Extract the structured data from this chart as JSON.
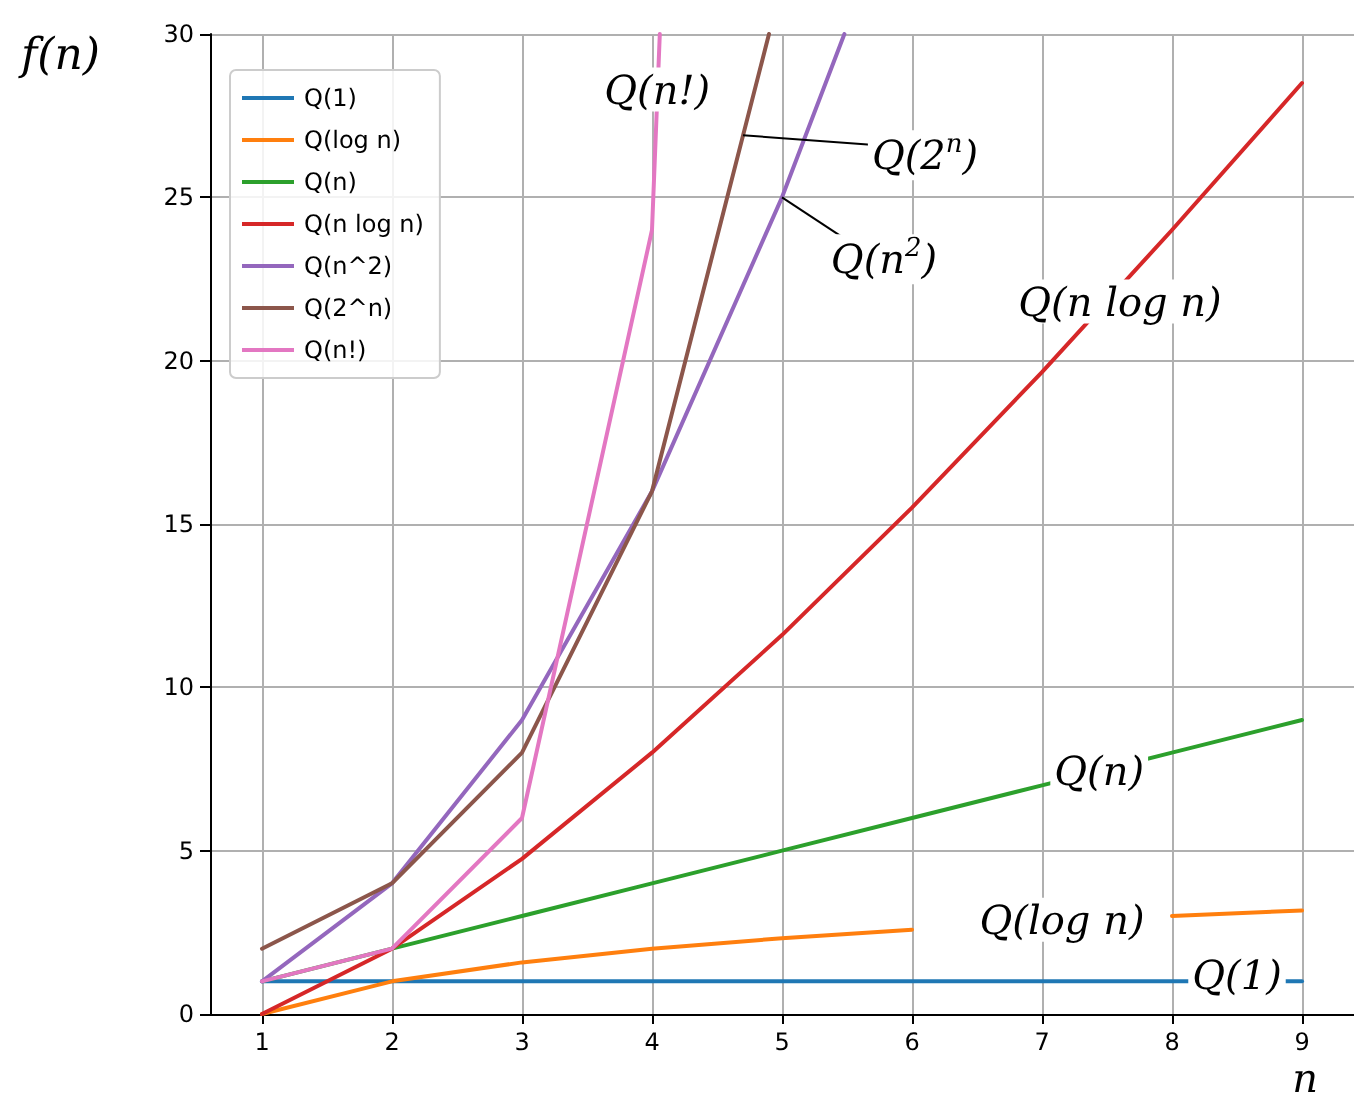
{
  "chart_data": {
    "type": "line",
    "xlabel": "n",
    "ylabel": "f(n)",
    "xlim": [
      0.6,
      9.4
    ],
    "xticks": [
      1,
      2,
      3,
      4,
      5,
      6,
      7,
      8,
      9
    ],
    "ylim": [
      0,
      30
    ],
    "yticks": [
      0,
      5,
      10,
      15,
      20,
      25,
      30
    ],
    "grid": true,
    "legend": "top left",
    "series": [
      {
        "name": "Q(1)",
        "color": "#1f77b4",
        "x": [
          1,
          2,
          3,
          4,
          5,
          6,
          7,
          8,
          9
        ],
        "values": [
          1,
          1,
          1,
          1,
          1,
          1,
          1,
          1,
          1
        ]
      },
      {
        "name": "Q(log n)",
        "color": "#ff7f0e",
        "x": [
          1,
          2,
          3,
          4,
          5,
          6,
          7,
          8,
          9
        ],
        "values": [
          0,
          1,
          1.58,
          2,
          2.32,
          2.58,
          null,
          3,
          3.17
        ]
      },
      {
        "name": "Q(n)",
        "color": "#2ca02c",
        "x": [
          1,
          2,
          3,
          4,
          5,
          6,
          7,
          8,
          9
        ],
        "values": [
          1,
          2,
          3,
          4,
          5,
          6,
          7,
          8,
          9
        ]
      },
      {
        "name": "Q(n log n)",
        "color": "#d62728",
        "x": [
          1,
          2,
          3,
          4,
          5,
          6,
          7,
          8,
          9
        ],
        "values": [
          0,
          2,
          4.75,
          8,
          11.6,
          15.5,
          19.65,
          24,
          28.5
        ]
      },
      {
        "name": "Q(n^2)",
        "color": "#9467bd",
        "x": [
          1,
          2,
          3,
          4,
          5,
          5.48
        ],
        "values": [
          1,
          4,
          9,
          16,
          25,
          30
        ]
      },
      {
        "name": "Q(2^n)",
        "color": "#8c564b",
        "x": [
          1,
          2,
          3,
          4,
          4.9
        ],
        "values": [
          2,
          4,
          8,
          16,
          30
        ]
      },
      {
        "name": "Q(n!)",
        "color": "#e377c2",
        "x": [
          1,
          2,
          3,
          4,
          4.06
        ],
        "values": [
          1,
          2,
          6,
          24,
          30
        ]
      }
    ],
    "annotations": [
      {
        "text": "Q(n!)",
        "x": 4.04,
        "y": 28.3
      },
      {
        "text": "Q(2$^{n}$)",
        "x": 4.7,
        "y": 26.9
      },
      {
        "text": "Q(n$^{2}$)",
        "x": 5,
        "y": 25
      },
      {
        "text": "Q(n log n)",
        "x": 7.6,
        "y": 22.3
      },
      {
        "text": "Q(n)",
        "x": 7.44,
        "y": 7.44
      },
      {
        "text": "Q(log n)",
        "x": 6,
        "y": 2.58
      },
      {
        "text": "Q(1)",
        "x": 8.5,
        "y": 1
      }
    ]
  }
}
